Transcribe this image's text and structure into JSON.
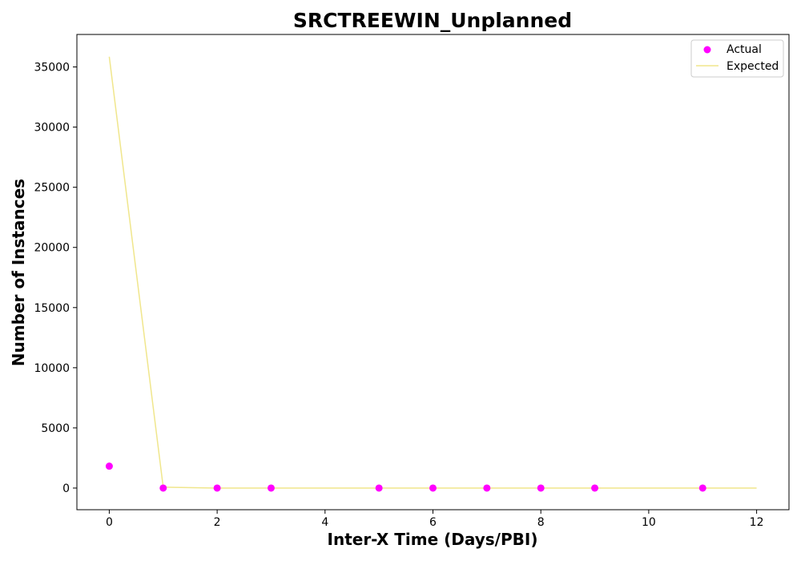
{
  "chart_data": {
    "type": "scatter",
    "title": "SRCTREEWIN_Unplanned",
    "xlabel": "Inter-X Time (Days/PBI)",
    "ylabel": "Number of Instances",
    "xlim": [
      -0.6,
      12.6
    ],
    "ylim": [
      -1800,
      37700
    ],
    "xticks": [
      0,
      2,
      4,
      6,
      8,
      10,
      12
    ],
    "yticks": [
      0,
      5000,
      10000,
      15000,
      20000,
      25000,
      30000,
      35000
    ],
    "grid": false,
    "legend_position": "top-right",
    "series": [
      {
        "name": "Actual",
        "type": "scatter",
        "color": "#ff00ff",
        "x": [
          0,
          1,
          2,
          3,
          5,
          6,
          7,
          8,
          9,
          11
        ],
        "y": [
          1820,
          2,
          1,
          1,
          1,
          1,
          1,
          1,
          1,
          1
        ]
      },
      {
        "name": "Expected",
        "type": "line",
        "color": "#f0e68c",
        "x": [
          0,
          1,
          2,
          3,
          4,
          5,
          6,
          7,
          8,
          9,
          10,
          11,
          12
        ],
        "y": [
          35850,
          70,
          1,
          0,
          0,
          0,
          0,
          0,
          0,
          0,
          0,
          0,
          0
        ]
      }
    ]
  }
}
